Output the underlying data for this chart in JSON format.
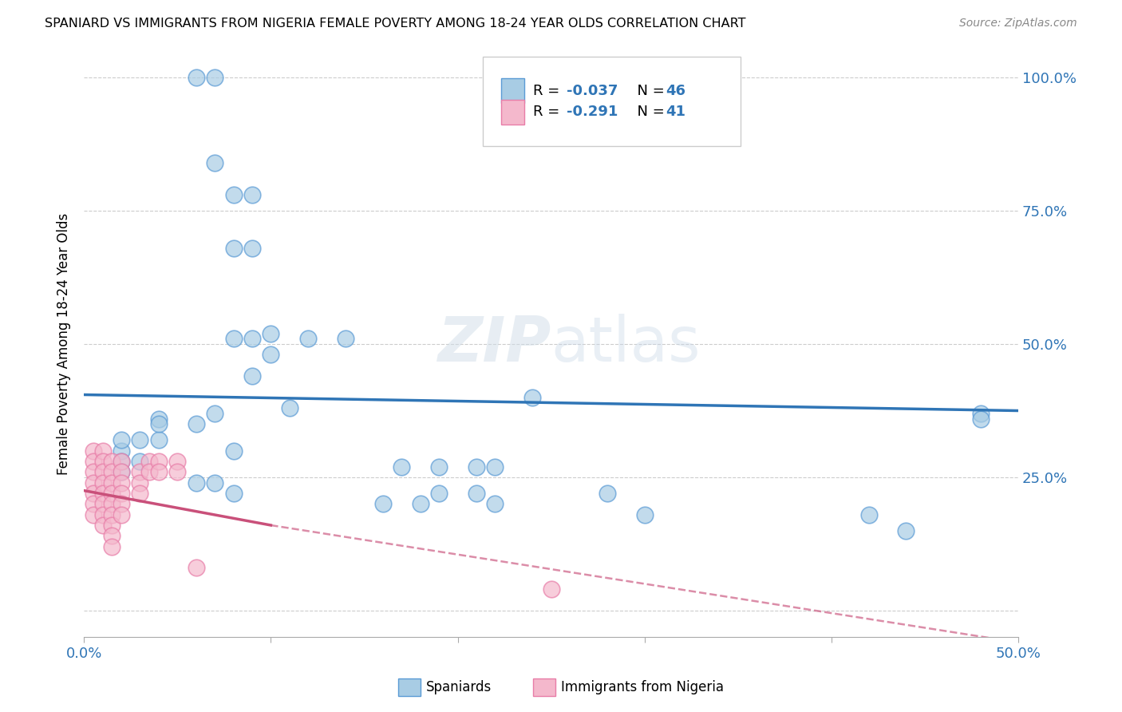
{
  "title": "SPANIARD VS IMMIGRANTS FROM NIGERIA FEMALE POVERTY AMONG 18-24 YEAR OLDS CORRELATION CHART",
  "source": "Source: ZipAtlas.com",
  "ylabel": "Female Poverty Among 18-24 Year Olds",
  "xlim": [
    0.0,
    0.5
  ],
  "ylim": [
    -0.05,
    1.05
  ],
  "blue_color": "#a8cce4",
  "pink_color": "#f4b8cc",
  "blue_edge_color": "#5b9bd5",
  "pink_edge_color": "#e87da8",
  "blue_line_color": "#2f75b6",
  "pink_line_color": "#c9507a",
  "blue_scatter": [
    [
      0.06,
      1.0
    ],
    [
      0.07,
      1.0
    ],
    [
      0.07,
      0.84
    ],
    [
      0.08,
      0.78
    ],
    [
      0.09,
      0.78
    ],
    [
      0.08,
      0.68
    ],
    [
      0.09,
      0.68
    ],
    [
      0.1,
      0.52
    ],
    [
      0.08,
      0.51
    ],
    [
      0.09,
      0.51
    ],
    [
      0.1,
      0.48
    ],
    [
      0.09,
      0.44
    ],
    [
      0.12,
      0.51
    ],
    [
      0.14,
      0.51
    ],
    [
      0.04,
      0.36
    ],
    [
      0.04,
      0.32
    ],
    [
      0.04,
      0.35
    ],
    [
      0.06,
      0.35
    ],
    [
      0.07,
      0.37
    ],
    [
      0.08,
      0.3
    ],
    [
      0.02,
      0.3
    ],
    [
      0.02,
      0.28
    ],
    [
      0.02,
      0.26
    ],
    [
      0.02,
      0.32
    ],
    [
      0.03,
      0.32
    ],
    [
      0.03,
      0.28
    ],
    [
      0.24,
      0.4
    ],
    [
      0.11,
      0.38
    ],
    [
      0.16,
      0.2
    ],
    [
      0.18,
      0.2
    ],
    [
      0.19,
      0.22
    ],
    [
      0.21,
      0.22
    ],
    [
      0.22,
      0.2
    ],
    [
      0.28,
      0.22
    ],
    [
      0.3,
      0.18
    ],
    [
      0.42,
      0.18
    ],
    [
      0.44,
      0.15
    ],
    [
      0.06,
      0.24
    ],
    [
      0.07,
      0.24
    ],
    [
      0.08,
      0.22
    ],
    [
      0.48,
      0.37
    ],
    [
      0.48,
      0.36
    ],
    [
      0.17,
      0.27
    ],
    [
      0.19,
      0.27
    ],
    [
      0.21,
      0.27
    ],
    [
      0.22,
      0.27
    ]
  ],
  "pink_scatter": [
    [
      0.005,
      0.3
    ],
    [
      0.005,
      0.28
    ],
    [
      0.005,
      0.26
    ],
    [
      0.005,
      0.24
    ],
    [
      0.005,
      0.22
    ],
    [
      0.005,
      0.2
    ],
    [
      0.005,
      0.18
    ],
    [
      0.01,
      0.3
    ],
    [
      0.01,
      0.28
    ],
    [
      0.01,
      0.26
    ],
    [
      0.01,
      0.24
    ],
    [
      0.01,
      0.22
    ],
    [
      0.01,
      0.2
    ],
    [
      0.01,
      0.18
    ],
    [
      0.01,
      0.16
    ],
    [
      0.015,
      0.28
    ],
    [
      0.015,
      0.26
    ],
    [
      0.015,
      0.24
    ],
    [
      0.015,
      0.22
    ],
    [
      0.015,
      0.2
    ],
    [
      0.015,
      0.18
    ],
    [
      0.015,
      0.16
    ],
    [
      0.015,
      0.14
    ],
    [
      0.015,
      0.12
    ],
    [
      0.02,
      0.28
    ],
    [
      0.02,
      0.26
    ],
    [
      0.02,
      0.24
    ],
    [
      0.02,
      0.22
    ],
    [
      0.02,
      0.2
    ],
    [
      0.02,
      0.18
    ],
    [
      0.03,
      0.26
    ],
    [
      0.03,
      0.24
    ],
    [
      0.03,
      0.22
    ],
    [
      0.035,
      0.28
    ],
    [
      0.035,
      0.26
    ],
    [
      0.04,
      0.28
    ],
    [
      0.04,
      0.26
    ],
    [
      0.05,
      0.28
    ],
    [
      0.05,
      0.26
    ],
    [
      0.06,
      0.08
    ],
    [
      0.25,
      0.04
    ]
  ],
  "blue_reg": [
    0.0,
    0.5,
    0.405,
    0.375
  ],
  "pink_reg_solid": [
    0.0,
    0.1,
    0.225,
    0.16
  ],
  "pink_reg_dashed": [
    0.1,
    0.5,
    0.16,
    -0.06
  ]
}
